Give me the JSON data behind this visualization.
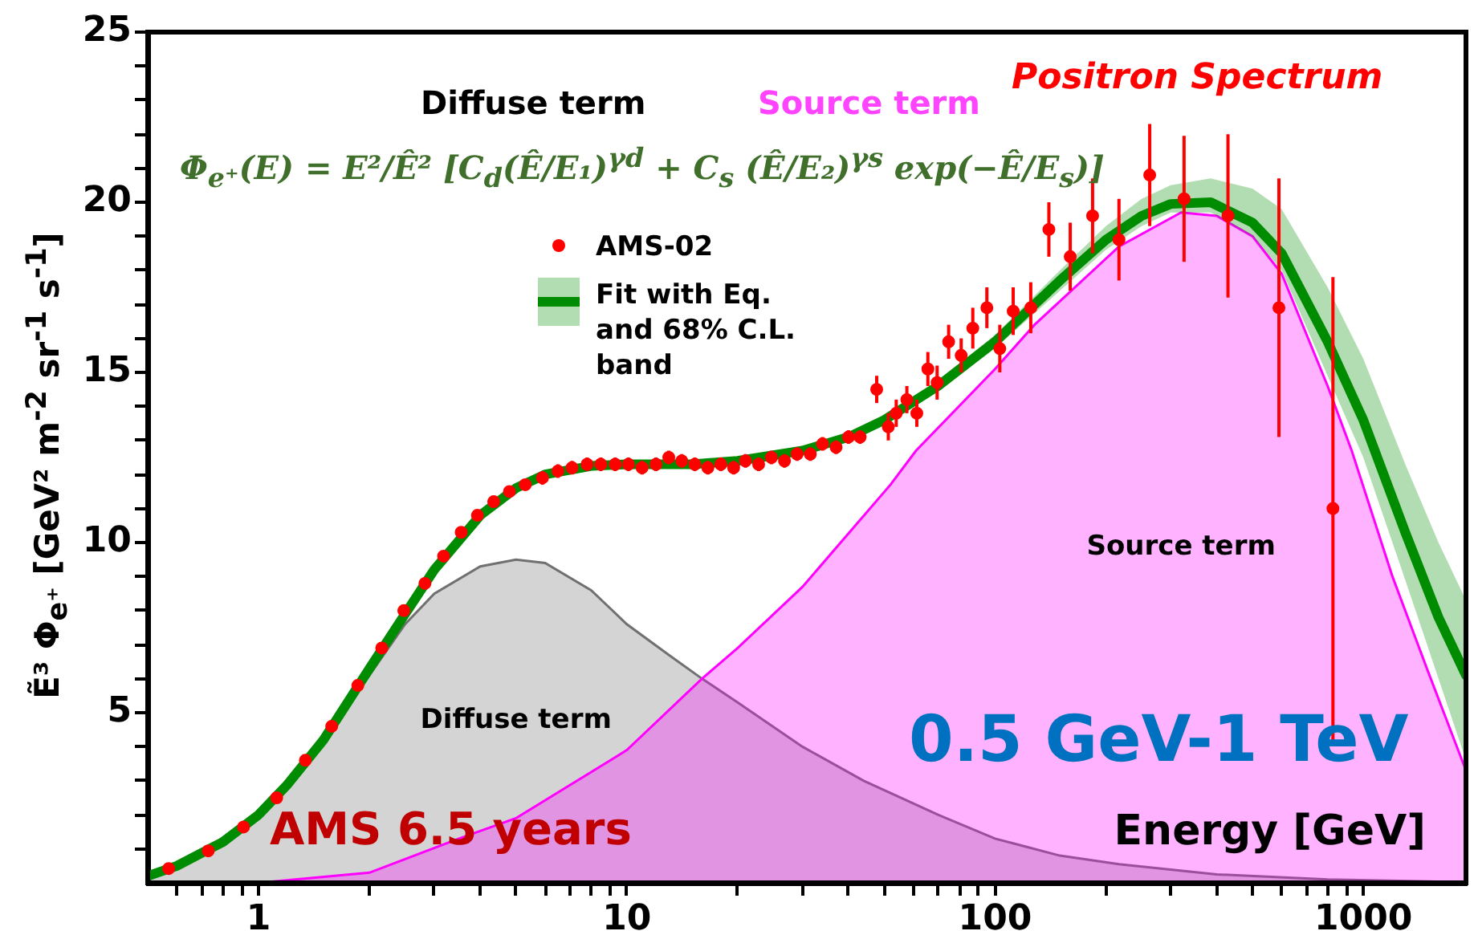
{
  "chart_data": {
    "type": "scatter",
    "title": "Positron Spectrum",
    "xlabel": "Energy [GeV]",
    "ylabel": "Ẽ³ Φ$_{e⁺}$ [GeV² m$^{-2}$ sr$^{-1}$ s$^{-1}$]",
    "annotations": [
      "Diffuse term",
      "Source term",
      "Φ$_{e⁺}$(E) = E²/Ê² [C$_{d}$(Ê/E₁)$^{γd}$ + C$_{s}$ (Ê/E₂)$^{γs}$ exp(−Ê/E$_{s}$)]",
      "AMS 6.5 years",
      "0.5 GeV-1 TeV"
    ],
    "log": "x",
    "legend": "top",
    "xlim": [
      0.5,
      1900
    ],
    "xticks": [
      {
        "value": 0.6,
        "label": null
      },
      {
        "value": 0.7,
        "label": null
      },
      {
        "value": 0.8,
        "label": null
      },
      {
        "value": 0.9,
        "label": null
      },
      1,
      {
        "value": 2,
        "label": null
      },
      {
        "value": 3,
        "label": null
      },
      {
        "value": 4,
        "label": null
      },
      {
        "value": 5,
        "label": null
      },
      {
        "value": 6,
        "label": null
      },
      {
        "value": 7,
        "label": null
      },
      {
        "value": 8,
        "label": null
      },
      {
        "value": 9,
        "label": null
      },
      10,
      {
        "value": 20,
        "label": null
      },
      {
        "value": 30,
        "label": null
      },
      {
        "value": 40,
        "label": null
      },
      {
        "value": 50,
        "label": null
      },
      {
        "value": 60,
        "label": null
      },
      {
        "value": 70,
        "label": null
      },
      {
        "value": 80,
        "label": null
      },
      {
        "value": 90,
        "label": null
      },
      100,
      {
        "value": 200,
        "label": null
      },
      {
        "value": 300,
        "label": null
      },
      {
        "value": 400,
        "label": null
      },
      {
        "value": 500,
        "label": null
      },
      {
        "value": 600,
        "label": null
      },
      {
        "value": 700,
        "label": null
      },
      {
        "value": 800,
        "label": null
      },
      {
        "value": 900,
        "label": null
      },
      1000
    ],
    "ylim": [
      0,
      25
    ],
    "yticks": [
      {
        "value": 1,
        "label": null
      },
      {
        "value": 2,
        "label": null
      },
      {
        "value": 3,
        "label": null
      },
      {
        "value": 4,
        "label": null
      },
      5,
      {
        "value": 6,
        "label": null
      },
      {
        "value": 7,
        "label": null
      },
      {
        "value": 8,
        "label": null
      },
      {
        "value": 9,
        "label": null
      },
      10,
      {
        "value": 11,
        "label": null
      },
      {
        "value": 12,
        "label": null
      },
      {
        "value": 13,
        "label": null
      },
      {
        "value": 14,
        "label": null
      },
      15,
      {
        "value": 16,
        "label": null
      },
      {
        "value": 17,
        "label": null
      },
      {
        "value": 18,
        "label": null
      },
      {
        "value": 19,
        "label": null
      },
      20,
      {
        "value": 21,
        "label": null
      },
      {
        "value": 22,
        "label": null
      },
      {
        "value": 23,
        "label": null
      },
      {
        "value": 24,
        "label": null
      },
      25
    ],
    "series": [
      {
        "name": "Diffuse term",
        "type": "area",
        "marker": "none",
        "color": "#707070",
        "x": [
          0.5,
          0.6,
          0.8,
          1,
          1.2,
          1.5,
          2,
          2.5,
          3,
          4,
          5,
          6,
          8,
          10,
          13,
          16,
          20,
          30,
          44,
          70,
          100,
          150,
          217,
          400,
          800,
          1900
        ],
        "values": [
          0.2,
          0.5,
          1.2,
          2.0,
          2.9,
          4.2,
          6.1,
          7.6,
          8.5,
          9.3,
          9.5,
          9.4,
          8.6,
          7.6,
          6.7,
          6.0,
          5.3,
          4.0,
          3.0,
          2.0,
          1.3,
          0.8,
          0.55,
          0.25,
          0.1,
          0.02
        ]
      },
      {
        "name": "Source term",
        "type": "area",
        "marker": "none",
        "color": "#ff00ff",
        "x": [
          1,
          2,
          3.5,
          5,
          10,
          16,
          20,
          30,
          52,
          61,
          100,
          128,
          217,
          320,
          400,
          500,
          600,
          800,
          930,
          1200,
          1500,
          1900
        ],
        "values": [
          0,
          0.3,
          1.3,
          1.9,
          3.9,
          6.0,
          6.9,
          8.7,
          11.7,
          12.7,
          15.1,
          16.4,
          18.7,
          19.7,
          19.6,
          19.0,
          17.9,
          14.6,
          12.7,
          9.0,
          6.2,
          3.3
        ]
      },
      {
        "name": "Fit with Eq. and 68% C.L. band",
        "type": "line",
        "marker": "none",
        "color": "#008c00",
        "x": [
          0.5,
          0.6,
          0.8,
          1,
          1.2,
          1.5,
          2,
          2.5,
          3,
          4,
          5,
          6,
          8,
          10,
          15,
          20,
          30,
          40,
          50,
          70,
          100,
          150,
          200,
          250,
          300,
          385,
          500,
          600,
          800,
          1000,
          1300,
          1600,
          1900
        ],
        "values": [
          0.2,
          0.5,
          1.2,
          2.0,
          2.9,
          4.2,
          6.3,
          7.9,
          9.2,
          10.8,
          11.6,
          12.0,
          12.25,
          12.3,
          12.3,
          12.4,
          12.7,
          13.1,
          13.6,
          14.6,
          15.9,
          17.7,
          18.9,
          19.6,
          19.95,
          20.0,
          19.4,
          18.5,
          15.9,
          13.6,
          10.3,
          7.8,
          6.1
        ],
        "lower": [
          0.1,
          0.4,
          1.1,
          1.9,
          2.8,
          4.1,
          6.2,
          7.8,
          9.1,
          10.7,
          11.5,
          11.9,
          12.15,
          12.2,
          12.2,
          12.3,
          12.6,
          13.0,
          13.5,
          14.45,
          15.7,
          17.4,
          18.6,
          19.3,
          19.7,
          19.7,
          19.0,
          18.0,
          14.9,
          12.5,
          8.9,
          6.0,
          3.6
        ],
        "upper": [
          0.3,
          0.6,
          1.3,
          2.1,
          3.0,
          4.3,
          6.4,
          8.0,
          9.3,
          10.9,
          11.7,
          12.1,
          12.35,
          12.4,
          12.4,
          12.5,
          12.8,
          13.2,
          13.7,
          14.75,
          16.1,
          18.0,
          19.3,
          20.1,
          20.5,
          20.7,
          20.4,
          19.8,
          17.5,
          15.4,
          12.3,
          10.0,
          8.3
        ]
      },
      {
        "name": "AMS-02",
        "marker": "circle",
        "color": "#ff0000",
        "x": [
          0.57,
          0.73,
          0.91,
          1.12,
          1.34,
          1.58,
          1.86,
          2.16,
          2.48,
          2.83,
          3.18,
          3.55,
          3.93,
          4.35,
          4.8,
          5.3,
          5.9,
          6.5,
          7.1,
          7.8,
          8.5,
          9.3,
          10.1,
          11,
          12,
          13,
          14.1,
          15.3,
          16.6,
          18,
          19.5,
          21,
          22.8,
          24.7,
          26.8,
          29,
          31.5,
          34,
          37,
          40,
          43,
          47.7,
          51.3,
          53.9,
          57.6,
          61.3,
          65.7,
          69.6,
          74.8,
          80.9,
          87,
          95,
          103,
          112,
          125,
          140,
          160,
          184,
          217,
          263,
          326,
          429,
          590,
          827
        ],
        "values": [
          0.42,
          0.94,
          1.64,
          2.5,
          3.6,
          4.6,
          5.8,
          6.9,
          8.0,
          8.8,
          9.6,
          10.3,
          10.8,
          11.2,
          11.5,
          11.7,
          11.9,
          12.1,
          12.2,
          12.3,
          12.3,
          12.3,
          12.3,
          12.2,
          12.3,
          12.5,
          12.4,
          12.3,
          12.2,
          12.3,
          12.2,
          12.4,
          12.3,
          12.5,
          12.4,
          12.6,
          12.6,
          12.9,
          12.8,
          13.1,
          13.1,
          14.5,
          13.4,
          13.8,
          14.2,
          13.8,
          15.1,
          14.7,
          15.9,
          15.5,
          16.3,
          16.9,
          15.7,
          16.8,
          16.9,
          19.2,
          18.4,
          19.6,
          18.9,
          20.8,
          20.1,
          19.6,
          16.9,
          11.0
        ],
        "errors": [
          null,
          null,
          null,
          null,
          null,
          null,
          null,
          null,
          null,
          null,
          null,
          null,
          null,
          null,
          null,
          null,
          0.2,
          0.2,
          0.2,
          0.2,
          0.2,
          0.2,
          0.2,
          0.2,
          0.2,
          0.2,
          0.2,
          0.2,
          0.2,
          0.2,
          0.2,
          0.2,
          0.2,
          0.2,
          0.2,
          0.2,
          0.2,
          0.2,
          0.2,
          0.2,
          0.2,
          0.4,
          0.4,
          0.4,
          0.4,
          0.4,
          0.5,
          0.5,
          0.5,
          0.5,
          0.6,
          0.6,
          0.7,
          0.7,
          0.75,
          0.8,
          1.0,
          1.1,
          1.2,
          1.5,
          1.85,
          2.4,
          3.8,
          6.8
        ]
      }
    ]
  }
}
